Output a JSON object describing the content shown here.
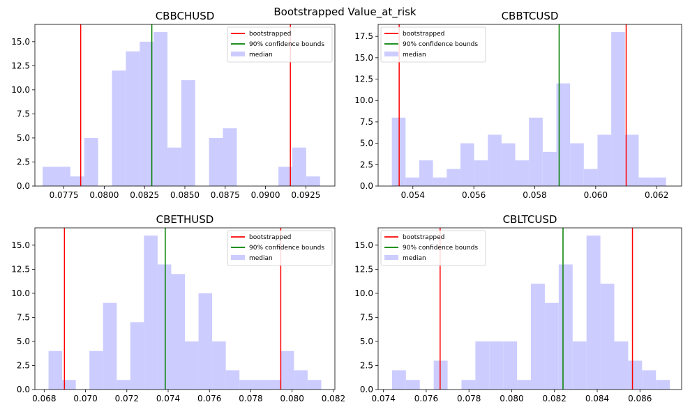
{
  "suptitle": "Bootstrapped Value_at_risk",
  "legend": {
    "labels": [
      "bootstrapped",
      "90% confidence bounds",
      "median"
    ],
    "colors": [
      "#ff0000",
      "#008000",
      "#ccccff"
    ]
  },
  "chart_data": [
    {
      "type": "bar",
      "title": "CBBCHUSD",
      "xlabel": "",
      "ylabel": "",
      "xlim": [
        0.0757,
        0.0943
      ],
      "ylim": [
        0,
        16.8
      ],
      "xticks": [
        0.0775,
        0.08,
        0.0825,
        0.085,
        0.0875,
        0.09,
        0.0925
      ],
      "xtick_labels": [
        "0.0775",
        "0.0800",
        "0.0825",
        "0.0850",
        "0.0875",
        "0.0900",
        "0.0925"
      ],
      "yticks": [
        0,
        2.5,
        5,
        7.5,
        10,
        12.5,
        15
      ],
      "ytick_labels": [
        "0.0",
        "2.5",
        "5.0",
        "7.5",
        "10.0",
        "12.5",
        "15.0"
      ],
      "bin_edges": [
        0.07618,
        0.07704,
        0.0779,
        0.07876,
        0.07962,
        0.08048,
        0.08134,
        0.0822,
        0.08306,
        0.08392,
        0.08478,
        0.08564,
        0.0865,
        0.08736,
        0.08822,
        0.08908,
        0.08994,
        0.0908,
        0.09166,
        0.09252,
        0.09338
      ],
      "counts": [
        2,
        2,
        1,
        5,
        0,
        12,
        14,
        15,
        16,
        4,
        11,
        0,
        5,
        6,
        0,
        0,
        0,
        2,
        4,
        1
      ],
      "bounds": [
        0.07854,
        0.09154
      ],
      "median": 0.08295,
      "legend_position": "top-right"
    },
    {
      "type": "bar",
      "title": "CBBTCUSD",
      "xlabel": "",
      "ylabel": "",
      "xlim": [
        0.05286,
        0.06282
      ],
      "ylim": [
        0,
        18.9
      ],
      "xticks": [
        0.054,
        0.056,
        0.058,
        0.06,
        0.062
      ],
      "xtick_labels": [
        "0.054",
        "0.056",
        "0.058",
        "0.060",
        "0.062"
      ],
      "yticks": [
        0,
        2.5,
        5,
        7.5,
        10,
        12.5,
        15,
        17.5
      ],
      "ytick_labels": [
        "0.0",
        "2.5",
        "5.0",
        "7.5",
        "10.0",
        "12.5",
        "15.0",
        "17.5"
      ],
      "bin_edges": [
        0.05331,
        0.05376,
        0.05421,
        0.05466,
        0.05511,
        0.05556,
        0.05601,
        0.05646,
        0.05691,
        0.05736,
        0.05781,
        0.05826,
        0.05871,
        0.05916,
        0.05961,
        0.06006,
        0.06051,
        0.06096,
        0.06141,
        0.06186,
        0.06231
      ],
      "counts": [
        8,
        1,
        3,
        1,
        2,
        5,
        3,
        6,
        5,
        3,
        8,
        4,
        12,
        5,
        2,
        6,
        18,
        6,
        1,
        1
      ],
      "bounds": [
        0.05355,
        0.061
      ],
      "median": 0.0588,
      "legend_position": "top-left"
    },
    {
      "type": "bar",
      "title": "CBETHUSD",
      "xlabel": "",
      "ylabel": "",
      "xlim": [
        0.06755,
        0.08207
      ],
      "ylim": [
        0,
        16.8
      ],
      "xticks": [
        0.068,
        0.07,
        0.072,
        0.074,
        0.076,
        0.078,
        0.08,
        0.082
      ],
      "xtick_labels": [
        "0.068",
        "0.070",
        "0.072",
        "0.074",
        "0.076",
        "0.078",
        "0.080",
        "0.082"
      ],
      "yticks": [
        0,
        2.5,
        5,
        7.5,
        10,
        12.5,
        15
      ],
      "ytick_labels": [
        "0.0",
        "2.5",
        "5.0",
        "7.5",
        "10.0",
        "12.5",
        "15.0"
      ],
      "bin_edges": [
        0.06821,
        0.06887,
        0.06953,
        0.07019,
        0.07085,
        0.07151,
        0.07217,
        0.07283,
        0.07349,
        0.07415,
        0.07481,
        0.07547,
        0.07613,
        0.07679,
        0.07745,
        0.07811,
        0.07877,
        0.07943,
        0.08009,
        0.08075,
        0.08141
      ],
      "counts": [
        4,
        1,
        0,
        4,
        9,
        1,
        7,
        16,
        13,
        12,
        5,
        10,
        5,
        2,
        1,
        1,
        1,
        4,
        2,
        1
      ],
      "bounds": [
        0.06898,
        0.07945
      ],
      "median": 0.07386,
      "legend_position": "top-right"
    },
    {
      "type": "bar",
      "title": "CBLTCUSD",
      "xlabel": "",
      "ylabel": "",
      "xlim": [
        0.07375,
        0.08795
      ],
      "ylim": [
        0,
        16.8
      ],
      "xticks": [
        0.074,
        0.076,
        0.078,
        0.08,
        0.082,
        0.084,
        0.086
      ],
      "xtick_labels": [
        "0.074",
        "0.076",
        "0.078",
        "0.080",
        "0.082",
        "0.084",
        "0.086"
      ],
      "yticks": [
        0,
        2.5,
        5,
        7.5,
        10,
        12.5,
        15
      ],
      "ytick_labels": [
        "0.0",
        "2.5",
        "5.0",
        "7.5",
        "10.0",
        "12.5",
        "15.0"
      ],
      "bin_edges": [
        0.0744,
        0.07505,
        0.0757,
        0.07635,
        0.077,
        0.07765,
        0.0783,
        0.07895,
        0.0796,
        0.08025,
        0.0809,
        0.08155,
        0.0822,
        0.08285,
        0.0835,
        0.08415,
        0.0848,
        0.08545,
        0.0861,
        0.08675,
        0.0874
      ],
      "counts": [
        2,
        1,
        0,
        3,
        0,
        1,
        5,
        5,
        5,
        1,
        11,
        9,
        13,
        5,
        16,
        11,
        5,
        3,
        2,
        1
      ],
      "bounds": [
        0.07665,
        0.08565
      ],
      "median": 0.0824,
      "legend_position": "top-left"
    }
  ]
}
